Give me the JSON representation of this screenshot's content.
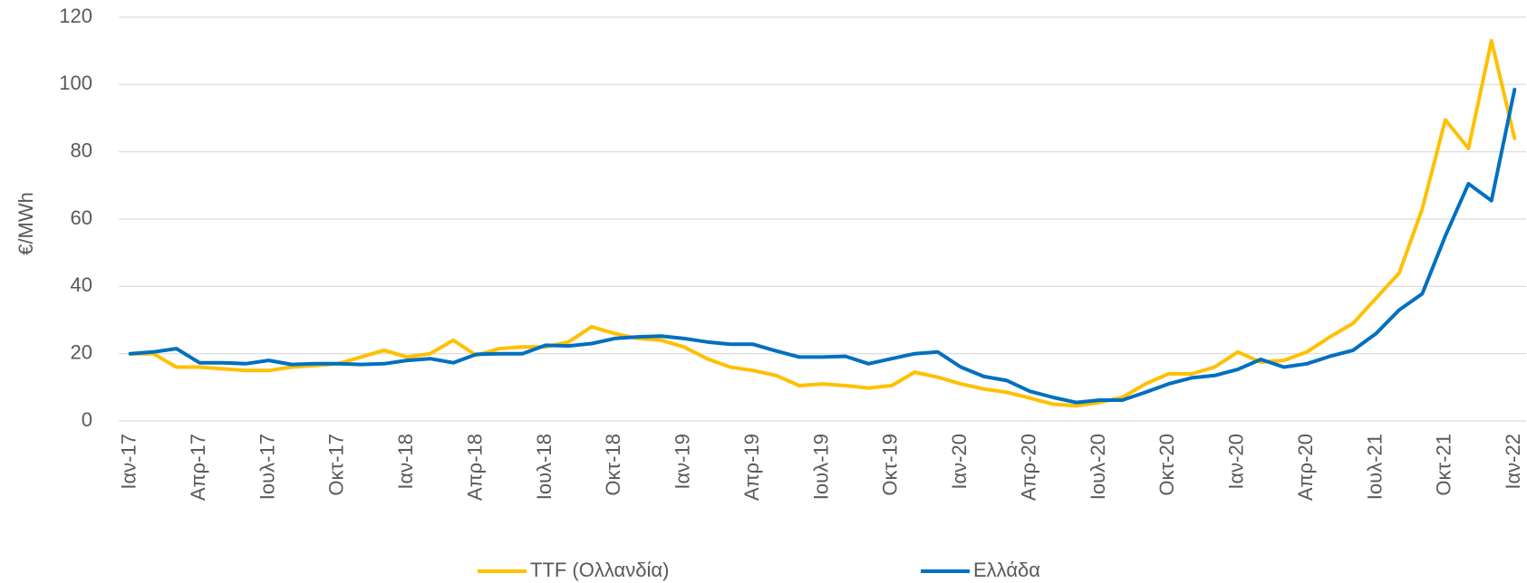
{
  "chart_data": {
    "type": "line",
    "y_label": "€/MWh",
    "categories": [
      "Ιαν-17",
      null,
      null,
      "Απρ-17",
      null,
      null,
      "Ιουλ-17",
      null,
      null,
      "Οκτ-17",
      null,
      null,
      "Ιαν-18",
      null,
      null,
      "Απρ-18",
      null,
      null,
      "Ιουλ-18",
      null,
      null,
      "Οκτ-18",
      null,
      null,
      "Ιαν-19",
      null,
      null,
      "Απρ-19",
      null,
      null,
      "Ιουλ-19",
      null,
      null,
      "Οκτ-19",
      null,
      null,
      "Ιαν-20",
      null,
      null,
      "Απρ-20",
      null,
      null,
      "Ιουλ-20",
      null,
      null,
      "Οκτ-20",
      null,
      null,
      "Ιαν-20",
      null,
      null,
      "Απρ-20",
      null,
      null,
      "Ιουλ-21",
      null,
      null,
      "Οκτ-21",
      null,
      null,
      "Ιαν-22"
    ],
    "series": [
      {
        "name": "TTF (Ολλανδία)",
        "color": "#FFC000",
        "values": [
          20,
          20,
          16,
          16,
          15.5,
          15,
          15,
          16,
          16.5,
          17,
          19,
          21,
          19,
          20,
          24,
          19.5,
          21.5,
          22,
          22,
          23.5,
          28,
          26,
          24.5,
          24,
          22,
          18.5,
          16,
          15,
          13.5,
          10.5,
          11,
          10.5,
          9.8,
          10.5,
          14.5,
          13,
          11,
          9.5,
          8.5,
          6.8,
          5,
          4.5,
          5.5,
          7,
          11,
          14,
          14,
          16,
          20.5,
          17.5,
          18,
          20.5,
          25,
          29,
          36.5,
          44,
          63,
          89.5,
          81,
          113,
          84
        ]
      },
      {
        "name": "Ελλάδα",
        "color": "#0070C0",
        "values": [
          20,
          20.5,
          21.5,
          17.3,
          17.3,
          17,
          18,
          16.8,
          17,
          17,
          16.8,
          17,
          18,
          18.5,
          17.3,
          19.8,
          20,
          20,
          22.5,
          22.3,
          23,
          24.5,
          25,
          25.2,
          24.5,
          23.5,
          22.8,
          22.8,
          20.8,
          19,
          19,
          19.2,
          17,
          18.5,
          20,
          20.5,
          16,
          13.2,
          12,
          8.8,
          7,
          5.5,
          6.2,
          6.2,
          8.5,
          11,
          12.8,
          13.5,
          15.3,
          18.3,
          16,
          17,
          19.2,
          21,
          26,
          33,
          37.8,
          55,
          70.5,
          65.5,
          98.5
        ]
      }
    ],
    "ylim": [
      0,
      120
    ],
    "yticks": [
      0,
      20,
      40,
      60,
      80,
      100,
      120
    ],
    "grid": true,
    "legend": "bottom"
  }
}
